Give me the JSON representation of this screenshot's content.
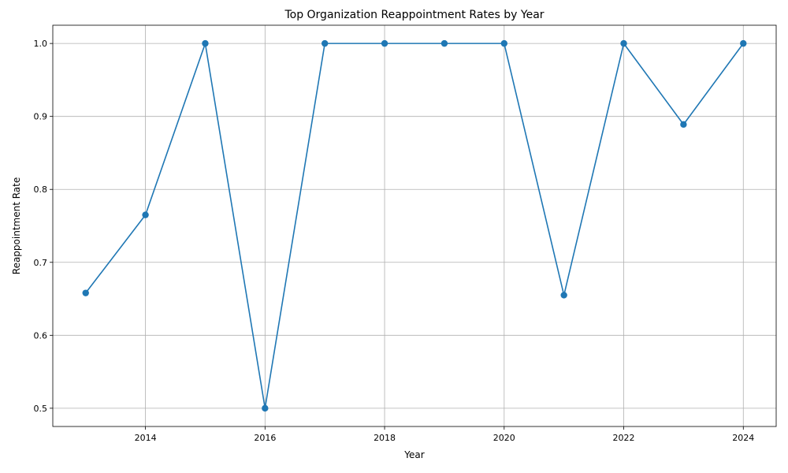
{
  "chart_data": {
    "type": "line",
    "title": "Top Organization Reappointment Rates by Year",
    "xlabel": "Year",
    "ylabel": "Reappointment Rate",
    "xlim": [
      2012.45,
      2024.55
    ],
    "ylim": [
      0.475,
      1.025
    ],
    "xticks": [
      2014,
      2016,
      2018,
      2020,
      2022,
      2024
    ],
    "yticks": [
      0.5,
      0.6,
      0.7,
      0.8,
      0.9,
      1.0
    ],
    "ytick_labels": [
      "0.5",
      "0.6",
      "0.7",
      "0.8",
      "0.9",
      "1.0"
    ],
    "grid": true,
    "series": [
      {
        "color": "#1f77b4",
        "marker": "circle",
        "x": [
          2013,
          2014,
          2015,
          2016,
          2017,
          2018,
          2019,
          2020,
          2021,
          2022,
          2023,
          2024
        ],
        "y": [
          0.658,
          0.765,
          1.0,
          0.5,
          1.0,
          1.0,
          1.0,
          1.0,
          0.655,
          1.0,
          0.889,
          1.0
        ]
      }
    ]
  }
}
